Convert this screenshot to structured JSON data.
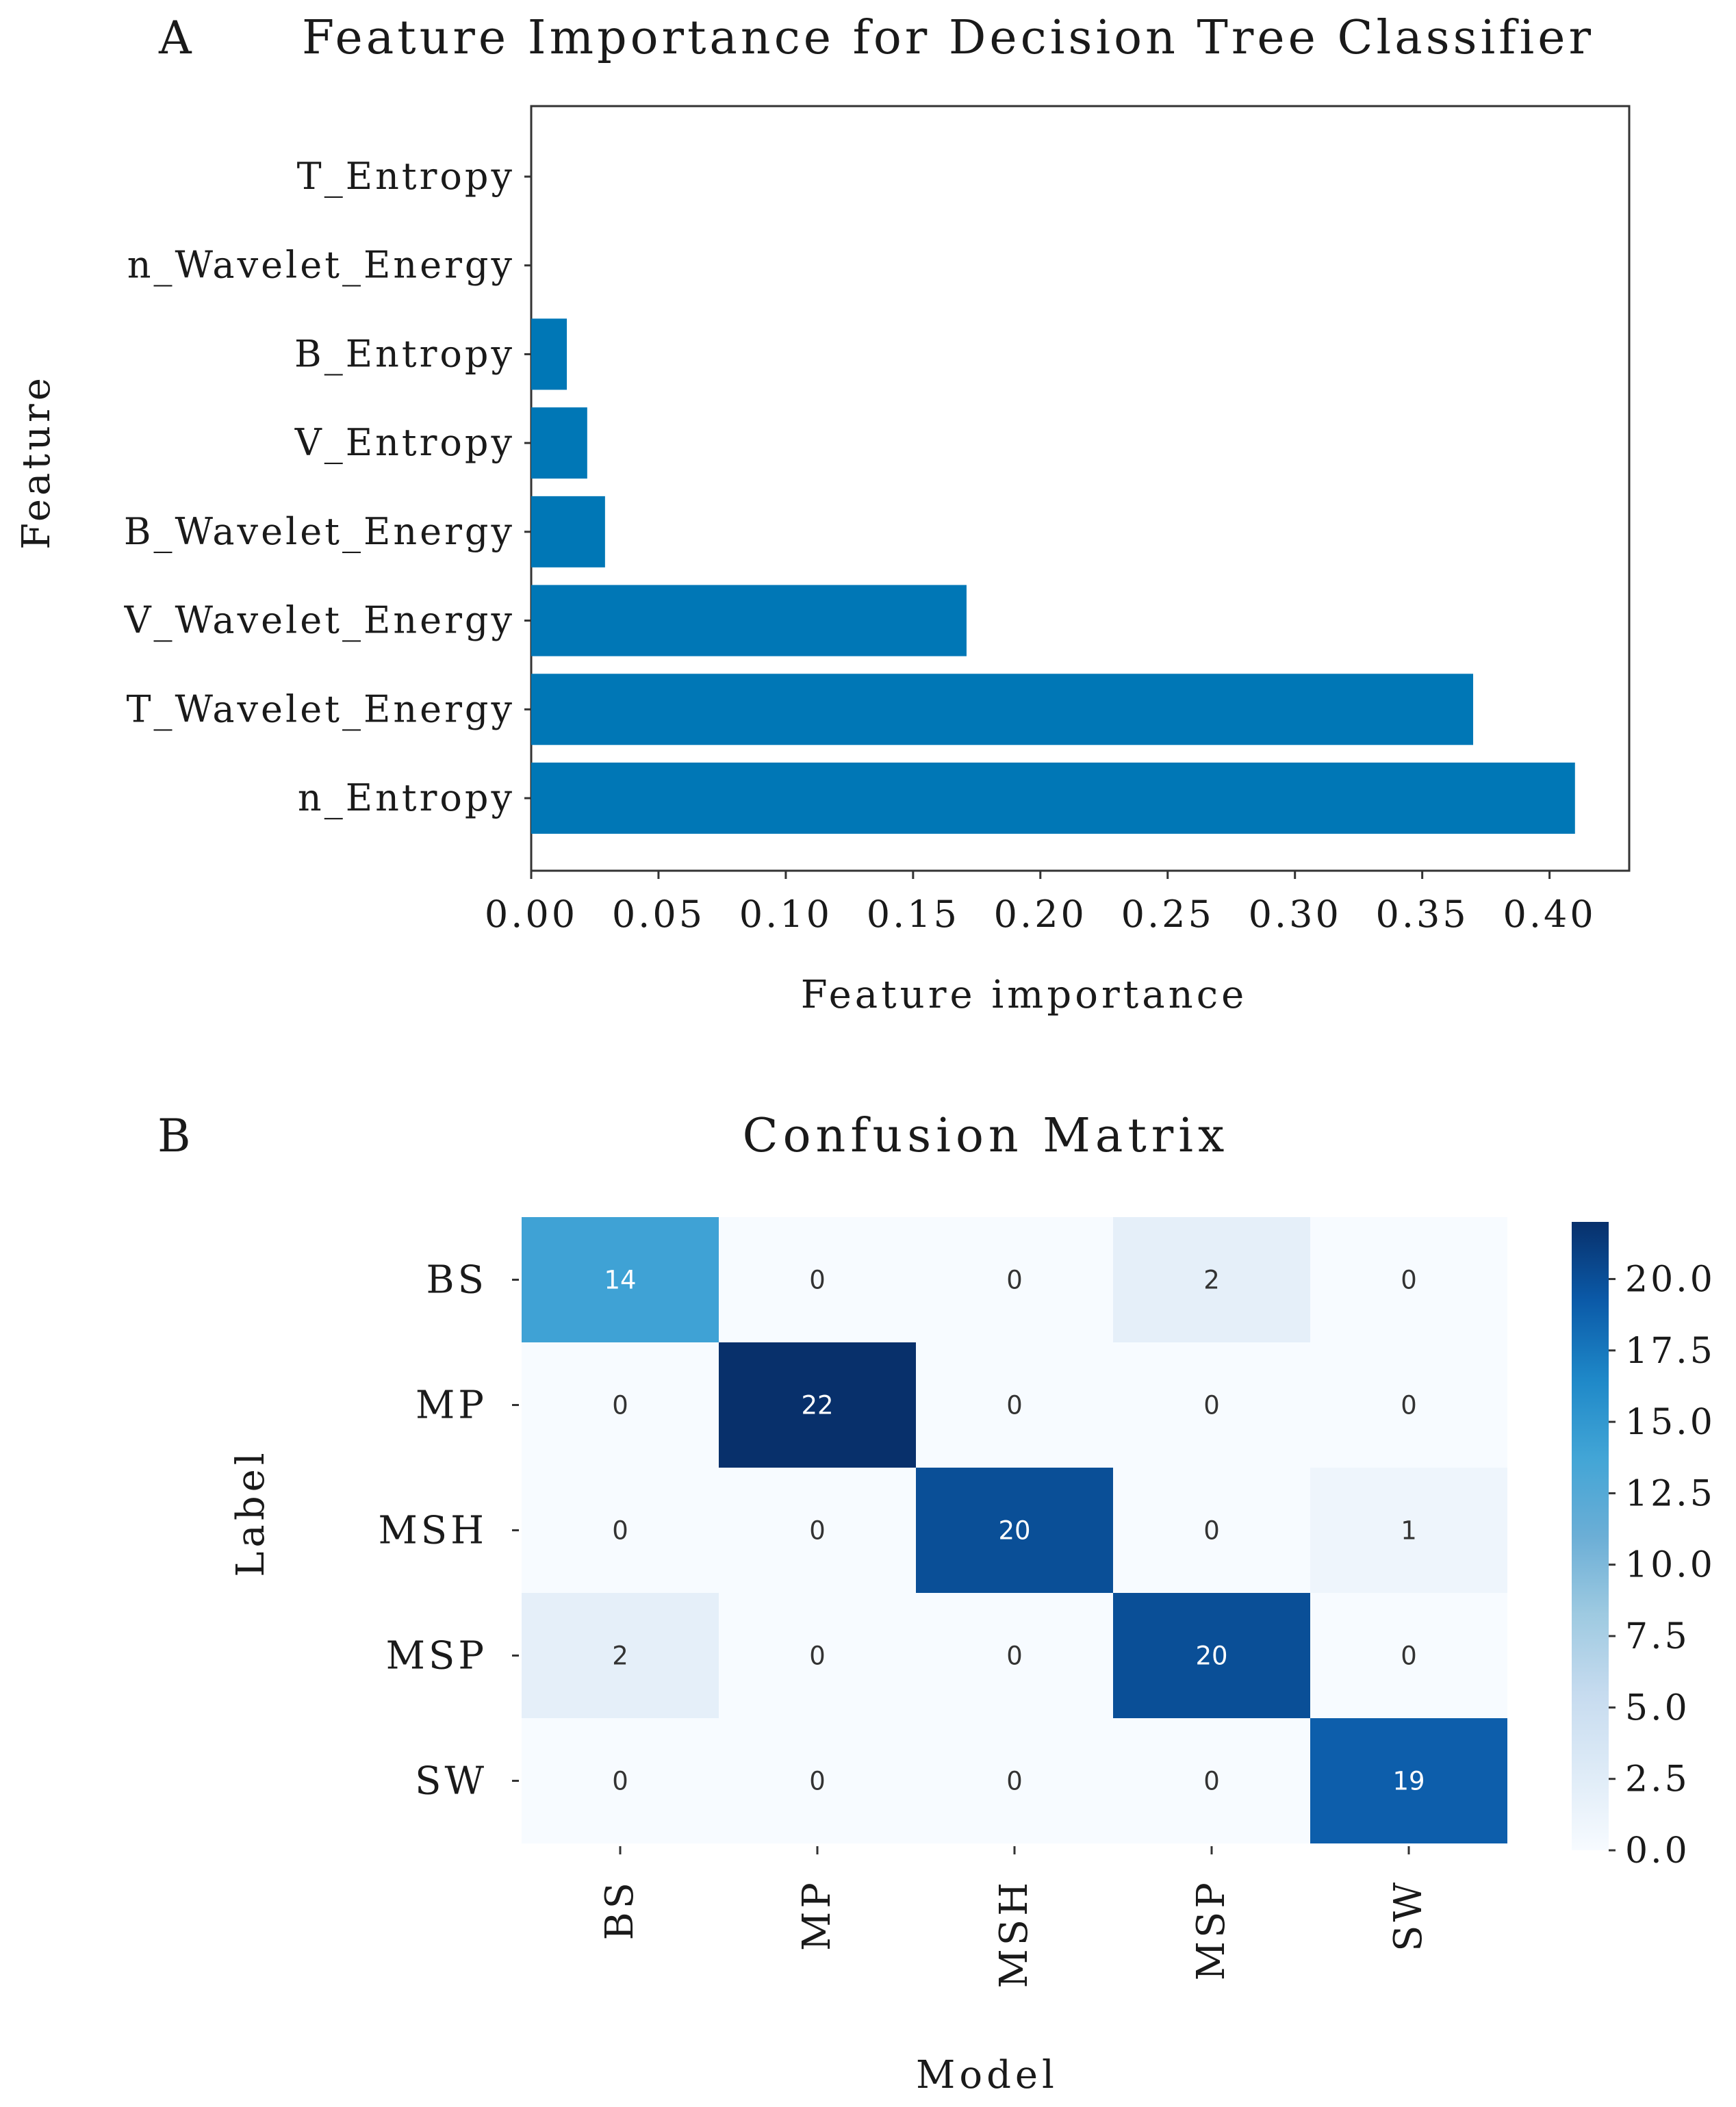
{
  "chart_data": [
    {
      "panel": "A",
      "type": "bar",
      "orientation": "horizontal",
      "title": "Feature Importance for Decision Tree Classifier",
      "xlabel": "Feature importance",
      "ylabel": "Feature",
      "xlim": [
        0,
        0.43
      ],
      "xticks": [
        "0.00",
        "0.05",
        "0.10",
        "0.15",
        "0.20",
        "0.25",
        "0.30",
        "0.35",
        "0.40"
      ],
      "xtick_values": [
        0,
        0.05,
        0.1,
        0.15,
        0.2,
        0.25,
        0.3,
        0.35,
        0.4
      ],
      "categories": [
        "T_Entropy",
        "n_Wavelet_Energy",
        "B_Entropy",
        "V_Entropy",
        "B_Wavelet_Energy",
        "V_Wavelet_Energy",
        "T_Wavelet_Energy",
        "n_Entropy"
      ],
      "values": [
        0.0,
        0.0,
        0.014,
        0.022,
        0.029,
        0.171,
        0.37,
        0.41
      ],
      "bar_color": "#0077b6",
      "grid": false
    },
    {
      "panel": "B",
      "type": "heatmap",
      "title": "Confusion Matrix",
      "xlabel": "Model",
      "ylabel": "Label",
      "row_labels": [
        "BS",
        "MP",
        "MSH",
        "MSP",
        "SW"
      ],
      "col_labels": [
        "BS",
        "MP",
        "MSH",
        "MSP",
        "SW"
      ],
      "matrix": [
        [
          14,
          0,
          0,
          2,
          0
        ],
        [
          0,
          22,
          0,
          0,
          0
        ],
        [
          0,
          0,
          20,
          0,
          1
        ],
        [
          2,
          0,
          0,
          20,
          0
        ],
        [
          0,
          0,
          0,
          0,
          19
        ]
      ],
      "colormap": "Blues",
      "vmin": 0,
      "vmax": 22,
      "colorbar_ticks": [
        "0.0",
        "2.5",
        "5.0",
        "7.5",
        "10.0",
        "12.5",
        "15.0",
        "17.5",
        "20.0"
      ],
      "colorbar_tick_values": [
        0,
        2.5,
        5,
        7.5,
        10,
        12.5,
        15,
        17.5,
        20
      ]
    }
  ]
}
